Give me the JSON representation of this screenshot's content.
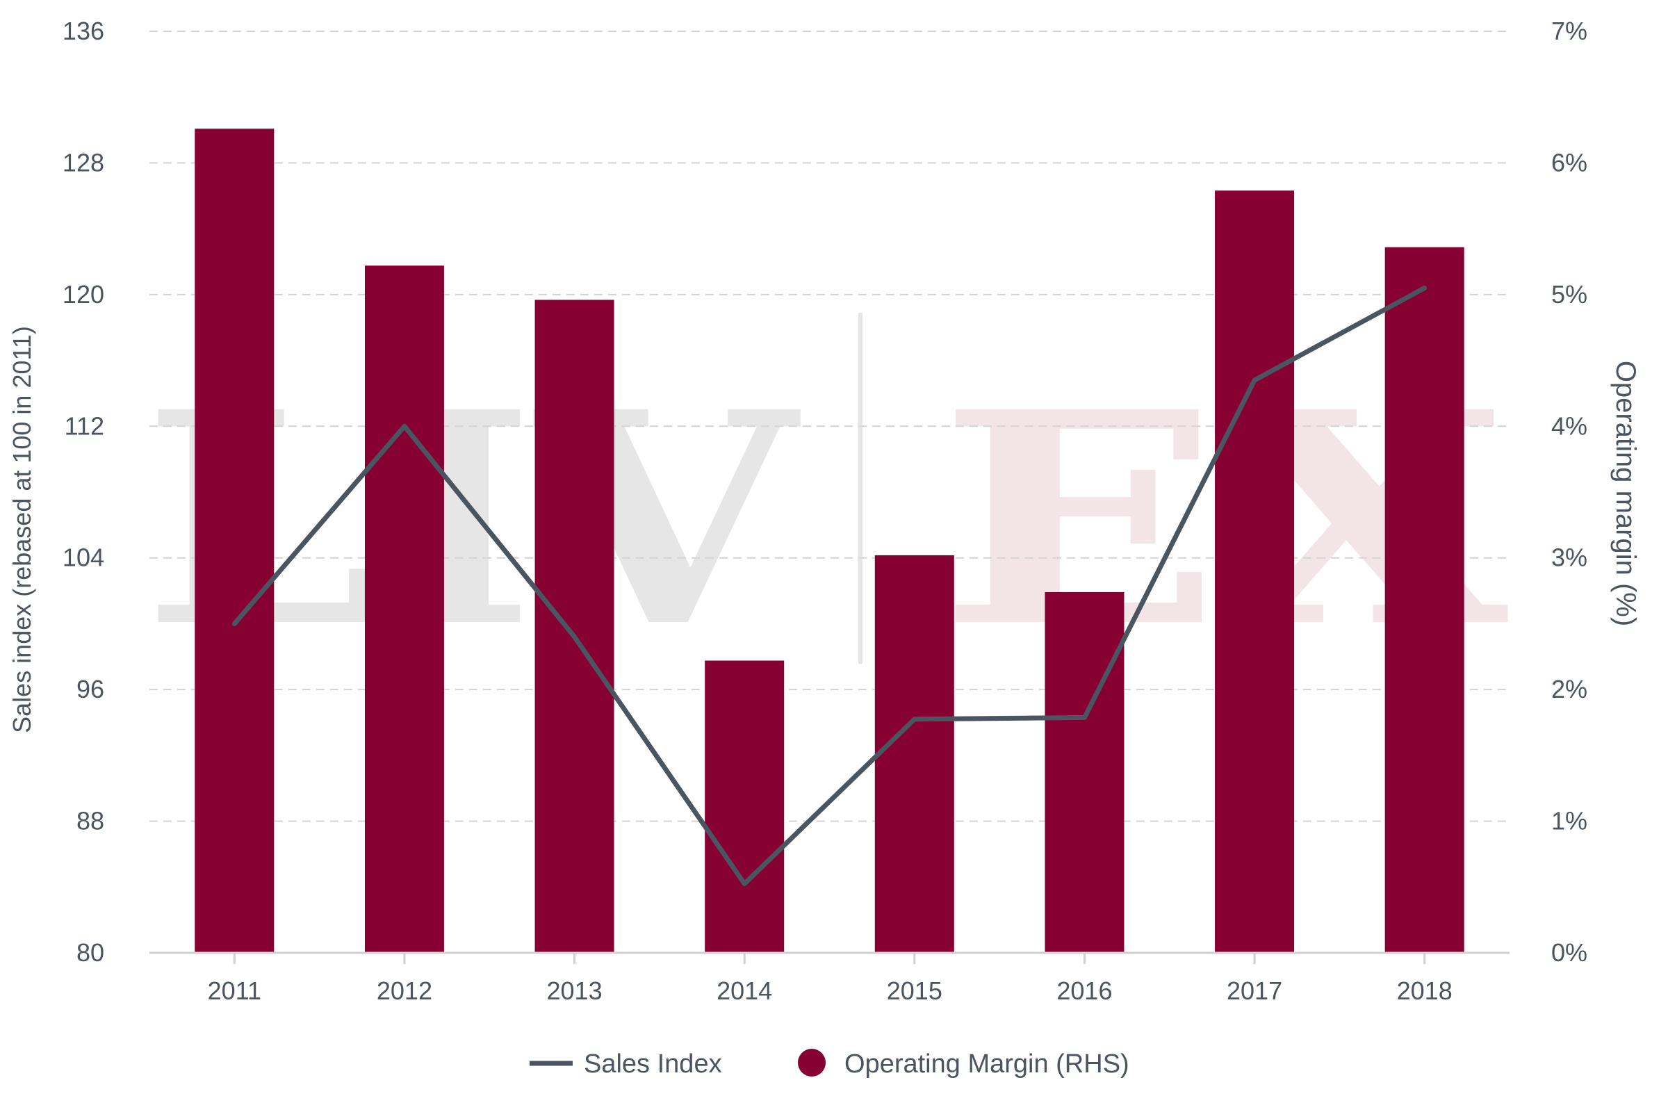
{
  "chart_data": {
    "type": "bar",
    "categories": [
      "2011",
      "2012",
      "2013",
      "2014",
      "2015",
      "2016",
      "2017",
      "2018"
    ],
    "series": [
      {
        "name": "Sales Index",
        "type": "line",
        "axis": "left",
        "color": "#4a555f",
        "values": [
          100,
          112,
          99.2,
          84.2,
          94.2,
          94.3,
          114.8,
          120.4
        ]
      },
      {
        "name": "Operating Margin (RHS)",
        "type": "bar",
        "axis": "right",
        "color": "#870032",
        "values": [
          6.26,
          5.22,
          4.96,
          2.22,
          3.02,
          2.74,
          5.79,
          5.36
        ]
      }
    ],
    "ylabel": "Sales index (rebased at 100 in 2011)",
    "y2label": "Operating margin (%)",
    "ylim": [
      80,
      136
    ],
    "y_ticks": [
      "80",
      "88",
      "96",
      "104",
      "112",
      "120",
      "128",
      "136"
    ],
    "y2lim": [
      0,
      7
    ],
    "y2_ticks": [
      "0%",
      "1%",
      "2%",
      "3%",
      "4%",
      "5%",
      "6%",
      "7%"
    ],
    "grid": "horizontal-dashed",
    "legend_position": "bottom-center"
  },
  "watermark": {
    "left": "LIV",
    "right": "EX",
    "left_color": "#e6e6e6",
    "right_color": "#f3e4e8"
  }
}
